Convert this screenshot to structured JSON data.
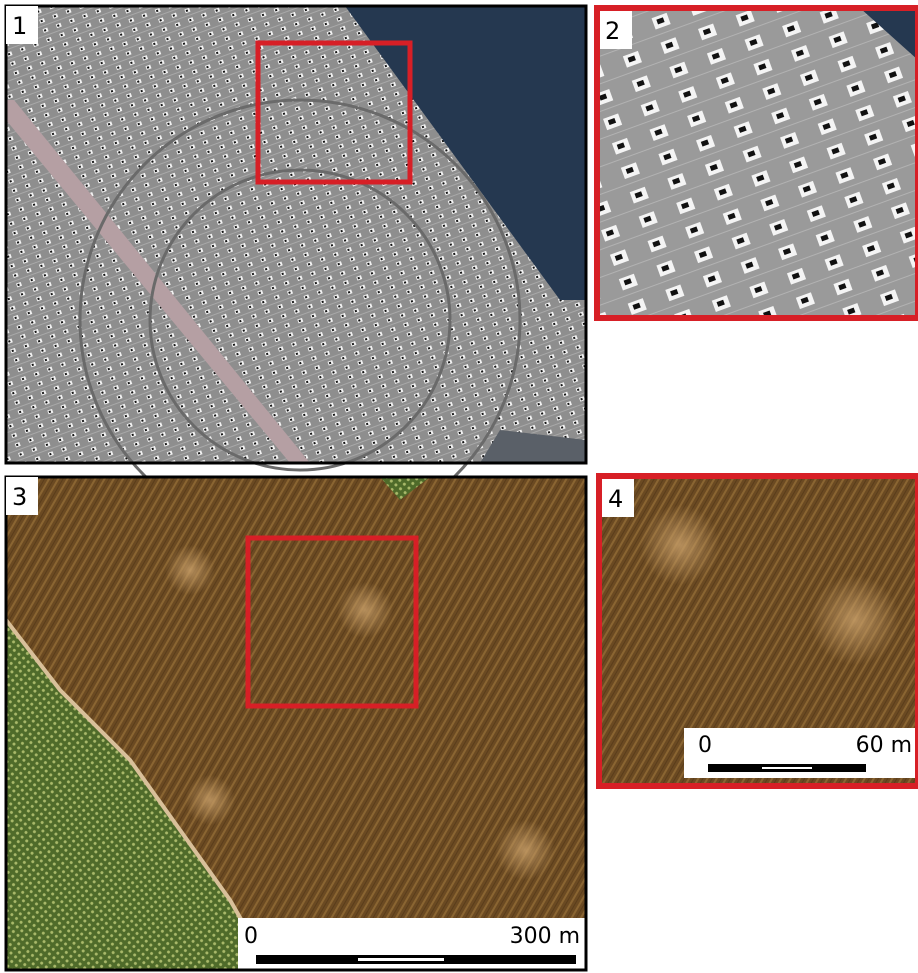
{
  "panels": [
    {
      "label": "1"
    },
    {
      "label": "2"
    },
    {
      "label": "3",
      "scale_bar": {
        "start": "0",
        "end": "300 m"
      }
    },
    {
      "label": "4",
      "scale_bar": {
        "start": "0",
        "end": "60 m"
      }
    }
  ]
}
